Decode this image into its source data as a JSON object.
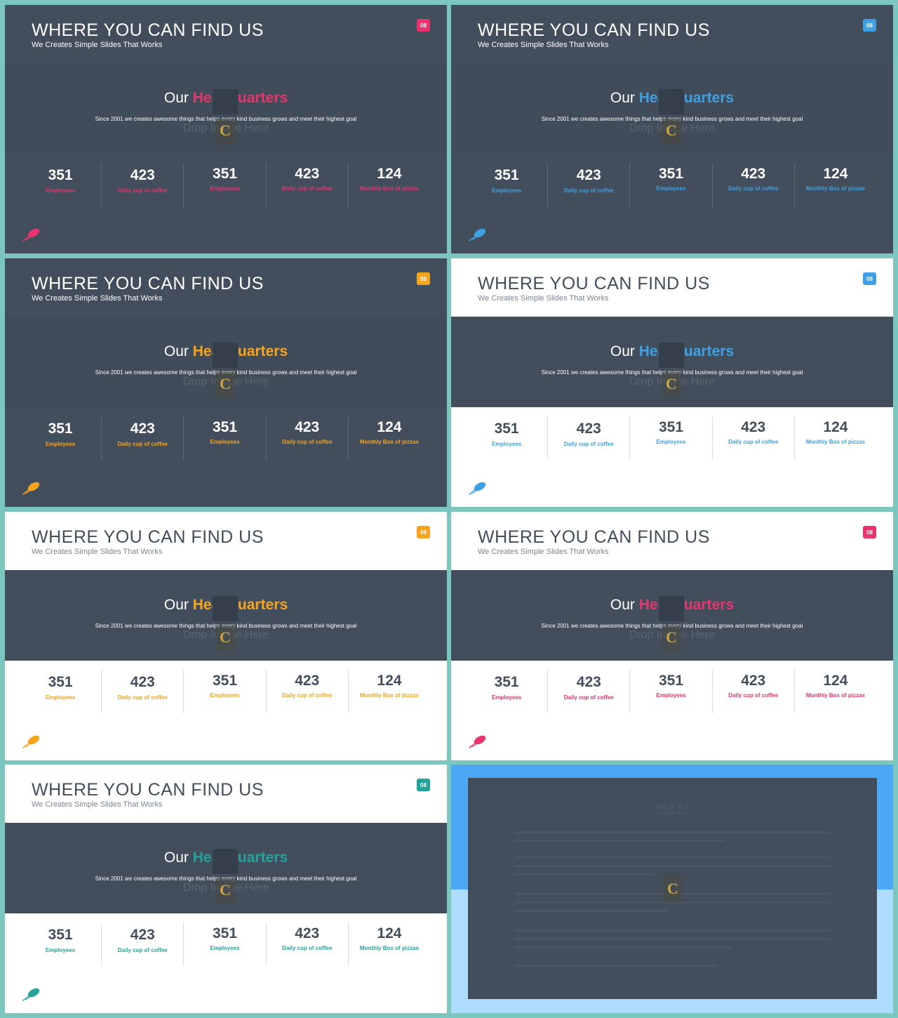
{
  "colors": {
    "pink": "#e8336d",
    "blue": "#3fa0e4",
    "orange": "#f6a41e",
    "teal": "#23a39a",
    "slate": "#424e5c",
    "frame": "#7cc6c0"
  },
  "slides": [
    {
      "title": "WHERE YOU CAN FIND US",
      "subtitle": "We Creates Simple Slides That Works",
      "badge": "08",
      "heading_plain": "Our",
      "heading_highlight": "Headquarters",
      "description": "Since 2001 we creates awesome things that helps every kind business grows and meet their highest goal",
      "drop_text": "Drop Image Here",
      "stats": [
        {
          "value": "351",
          "label": "Employees"
        },
        {
          "value": "423",
          "label": "Daily cup of coffee"
        },
        {
          "value": "351",
          "label": "Employees"
        },
        {
          "value": "423",
          "label": "Daily cup of coffee"
        },
        {
          "value": "124",
          "label": "Monthly Box of pizzas"
        }
      ]
    },
    {
      "title": "WHERE YOU CAN FIND US",
      "subtitle": "We Creates Simple Slides That Works",
      "badge": "08",
      "heading_plain": "Our",
      "heading_highlight": "Headquarters",
      "description": "Since 2001 we creates awesome things that helps every kind business grows and meet their highest goal",
      "drop_text": "Drop Image Here",
      "stats": [
        {
          "value": "351",
          "label": "Employees"
        },
        {
          "value": "423",
          "label": "Daily cup of coffee"
        },
        {
          "value": "351",
          "label": "Employees"
        },
        {
          "value": "423",
          "label": "Daily cup of coffee"
        },
        {
          "value": "124",
          "label": "Monthly Box of pizzas"
        }
      ]
    },
    {
      "title": "WHERE YOU CAN FIND US",
      "subtitle": "We Creates Simple Slides That Works",
      "badge": "08",
      "heading_plain": "Our",
      "heading_highlight": "Headquarters",
      "description": "Since 2001 we creates awesome things that helps every kind business grows and meet their highest goal",
      "drop_text": "Drop Image Here",
      "stats": [
        {
          "value": "351",
          "label": "Employees"
        },
        {
          "value": "423",
          "label": "Daily cup of coffee"
        },
        {
          "value": "351",
          "label": "Employees"
        },
        {
          "value": "423",
          "label": "Daily cup of coffee"
        },
        {
          "value": "124",
          "label": "Monthly Box of pizzas"
        }
      ]
    },
    {
      "title": "WHERE YOU CAN FIND US",
      "subtitle": "We Creates Simple Slides That Works",
      "badge": "08",
      "heading_plain": "Our",
      "heading_highlight": "Headquarters",
      "description": "Since 2001 we creates awesome things that helps every kind business grows and meet their highest goal",
      "drop_text": "Drop Image Here",
      "stats": [
        {
          "value": "351",
          "label": "Employees"
        },
        {
          "value": "423",
          "label": "Daily cup of coffee"
        },
        {
          "value": "351",
          "label": "Employees"
        },
        {
          "value": "423",
          "label": "Daily cup of coffee"
        },
        {
          "value": "124",
          "label": "Monthly Box of pizzas"
        }
      ]
    },
    {
      "title": "WHERE YOU CAN FIND US",
      "subtitle": "We Creates Simple Slides That Works",
      "badge": "08",
      "heading_plain": "Our",
      "heading_highlight": "Headquarters",
      "description": "Since 2001 we creates awesome things that helps every kind business grows and meet their highest goal",
      "drop_text": "Drop Image Here",
      "stats": [
        {
          "value": "351",
          "label": "Employees"
        },
        {
          "value": "423",
          "label": "Daily cup of coffee"
        },
        {
          "value": "351",
          "label": "Employees"
        },
        {
          "value": "423",
          "label": "Daily cup of coffee"
        },
        {
          "value": "124",
          "label": "Monthly Box of pizzas"
        }
      ]
    },
    {
      "title": "WHERE YOU CAN FIND US",
      "subtitle": "We Creates Simple Slides That Works",
      "badge": "08",
      "heading_plain": "Our",
      "heading_highlight": "Headquarters",
      "description": "Since 2001 we creates awesome things that helps every kind business grows and meet their highest goal",
      "drop_text": "Drop Image Here",
      "stats": [
        {
          "value": "351",
          "label": "Employees"
        },
        {
          "value": "423",
          "label": "Daily cup of coffee"
        },
        {
          "value": "351",
          "label": "Employees"
        },
        {
          "value": "423",
          "label": "Daily cup of coffee"
        },
        {
          "value": "124",
          "label": "Monthly Box of pizzas"
        }
      ]
    },
    {
      "title": "WHERE YOU CAN FIND US",
      "subtitle": "We Creates Simple Slides That Works",
      "badge": "08",
      "heading_plain": "Our",
      "heading_highlight": "Headquarters",
      "description": "Since 2001 we creates awesome things that helps every kind business grows and meet their highest goal",
      "drop_text": "Drop Image Here",
      "stats": [
        {
          "value": "351",
          "label": "Employees"
        },
        {
          "value": "423",
          "label": "Daily cup of coffee"
        },
        {
          "value": "351",
          "label": "Employees"
        },
        {
          "value": "423",
          "label": "Daily cup of coffee"
        },
        {
          "value": "124",
          "label": "Monthly Box of pizzas"
        }
      ]
    }
  ],
  "notice": {
    "title": "저작권 공고",
    "subtitle": "Copyright Notice"
  }
}
